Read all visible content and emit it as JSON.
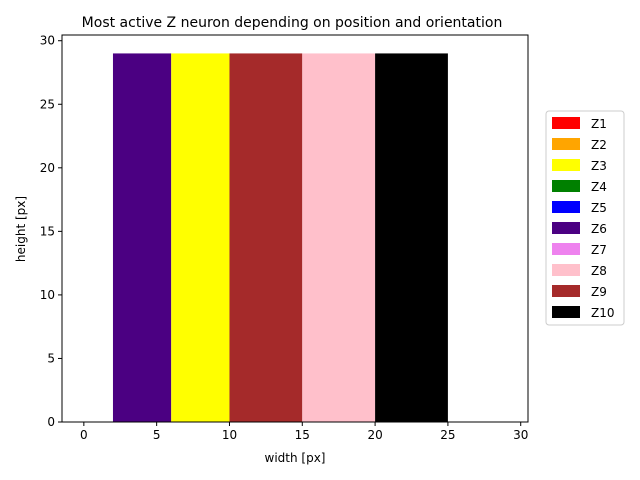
{
  "chart_data": {
    "type": "bar",
    "title": "Most active Z neuron depending on position and orientation",
    "xlabel": "width [px]",
    "ylabel": "height [px]",
    "xlim": [
      -1.5,
      30.5
    ],
    "ylim": [
      0,
      30.45
    ],
    "xticks": [
      0,
      5,
      10,
      15,
      20,
      25,
      30
    ],
    "yticks": [
      0,
      5,
      10,
      15,
      20,
      25,
      30
    ],
    "grid": false,
    "legend_position": "right",
    "bars": [
      {
        "x0": 2,
        "x1": 6,
        "height": 29,
        "neuron": "Z6",
        "color": "#4b0082"
      },
      {
        "x0": 6,
        "x1": 10,
        "height": 29,
        "neuron": "Z3",
        "color": "#ffff00"
      },
      {
        "x0": 10,
        "x1": 15,
        "height": 29,
        "neuron": "Z9",
        "color": "#a52a2a"
      },
      {
        "x0": 15,
        "x1": 20,
        "height": 29,
        "neuron": "Z8",
        "color": "#ffc0cb"
      },
      {
        "x0": 20,
        "x1": 25,
        "height": 29,
        "neuron": "Z10",
        "color": "#000000"
      }
    ],
    "legend": [
      {
        "label": "Z1",
        "color": "#ff0000"
      },
      {
        "label": "Z2",
        "color": "#ffa500"
      },
      {
        "label": "Z3",
        "color": "#ffff00"
      },
      {
        "label": "Z4",
        "color": "#008000"
      },
      {
        "label": "Z5",
        "color": "#0000ff"
      },
      {
        "label": "Z6",
        "color": "#4b0082"
      },
      {
        "label": "Z7",
        "color": "#ee82ee"
      },
      {
        "label": "Z8",
        "color": "#ffc0cb"
      },
      {
        "label": "Z9",
        "color": "#a52a2a"
      },
      {
        "label": "Z10",
        "color": "#000000"
      }
    ]
  }
}
